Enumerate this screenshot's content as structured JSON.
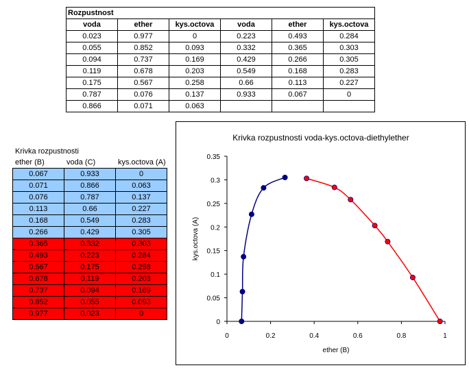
{
  "top_table": {
    "title": "Rozpustnost",
    "headers": [
      "voda",
      "ether",
      "kys.octova",
      "voda",
      "ether",
      "kys.octova"
    ],
    "rows": [
      [
        "0.023",
        "0.977",
        "0",
        "0.223",
        "0.493",
        "0.284"
      ],
      [
        "0.055",
        "0.852",
        "0.093",
        "0.332",
        "0.365",
        "0.303"
      ],
      [
        "0.094",
        "0.737",
        "0.169",
        "0.429",
        "0.266",
        "0.305"
      ],
      [
        "0.119",
        "0.678",
        "0.203",
        "0.549",
        "0.168",
        "0.283"
      ],
      [
        "0.175",
        "0.567",
        "0.258",
        "0.66",
        "0.113",
        "0.227"
      ],
      [
        "0.787",
        "0.076",
        "0.137",
        "0.933",
        "0.067",
        "0"
      ],
      [
        "0.866",
        "0.071",
        "0.063",
        "",
        "",
        ""
      ]
    ]
  },
  "left_table": {
    "title": "Krivka rozpustnosti",
    "headers": [
      "ether (B)",
      "voda (C)",
      "kys.octova (A)"
    ],
    "blue_rows": [
      [
        "0.067",
        "0.933",
        "0"
      ],
      [
        "0.071",
        "0.866",
        "0.063"
      ],
      [
        "0.076",
        "0.787",
        "0.137"
      ],
      [
        "0.113",
        "0.66",
        "0.227"
      ],
      [
        "0.168",
        "0.549",
        "0.283"
      ],
      [
        "0.266",
        "0.429",
        "0.305"
      ]
    ],
    "red_rows": [
      [
        "0.365",
        "0.332",
        "0.303"
      ],
      [
        "0.493",
        "0.223",
        "0.284"
      ],
      [
        "0.567",
        "0.175",
        "0.258"
      ],
      [
        "0.678",
        "0.119",
        "0.203"
      ],
      [
        "0.737",
        "0.094",
        "0.169"
      ],
      [
        "0.852",
        "0.055",
        "0.093"
      ],
      [
        "0.977",
        "0.023",
        "0"
      ]
    ],
    "colors": {
      "blue": "#99ccff",
      "red": "#ff0000"
    }
  },
  "chart_data": {
    "type": "scatter",
    "title": "Krivka rozpustnosti  voda-kys.octova-diethylether",
    "xlabel": "ether (B)",
    "ylabel": "kys.octova (A)",
    "xlim": [
      0,
      1
    ],
    "ylim": [
      0,
      0.35
    ],
    "xticks": [
      "0",
      "0.2",
      "0.4",
      "0.6",
      "0.8",
      "1"
    ],
    "yticks": [
      "0",
      "0.05",
      "0.1",
      "0.15",
      "0.2",
      "0.25",
      "0.3",
      "0.35"
    ],
    "grid": false,
    "series": [
      {
        "color": "#000080",
        "x": [
          0.067,
          0.071,
          0.076,
          0.113,
          0.168,
          0.266
        ],
        "y": [
          0,
          0.063,
          0.137,
          0.227,
          0.283,
          0.305
        ]
      },
      {
        "color": "#ff0000",
        "x": [
          0.365,
          0.493,
          0.567,
          0.678,
          0.737,
          0.852,
          0.977
        ],
        "y": [
          0.303,
          0.284,
          0.258,
          0.203,
          0.169,
          0.093,
          0
        ]
      }
    ]
  }
}
